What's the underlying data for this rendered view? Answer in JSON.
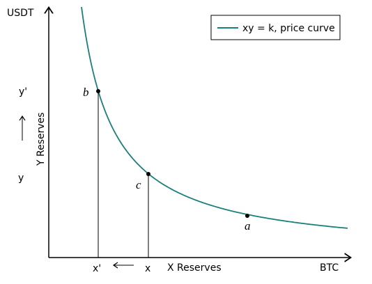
{
  "axes": {
    "y_unit": "USDT",
    "x_unit": "BTC",
    "y_label": "Y Reserves",
    "x_label": "X Reserves"
  },
  "legend": {
    "label": "xy = k, price curve"
  },
  "y_marks": {
    "upper": "y'",
    "lower": "y"
  },
  "x_marks": {
    "left": "x'",
    "right": "x"
  },
  "points": {
    "a": "a",
    "b": "b",
    "c": "c"
  }
}
